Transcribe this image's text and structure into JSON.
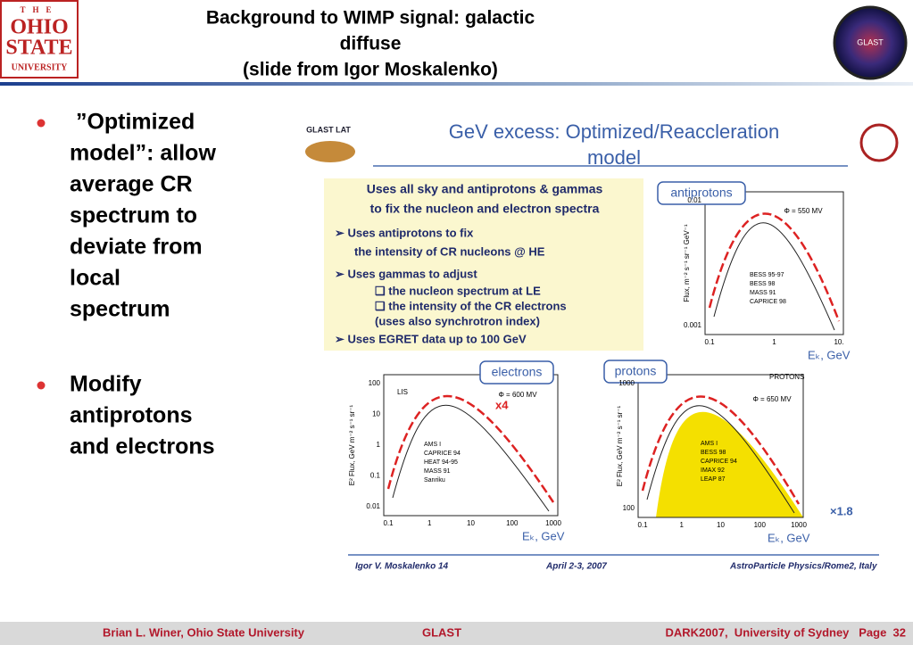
{
  "header": {
    "logo_left": [
      "THE",
      "OHIO",
      "STATE",
      "UNIVERSITY"
    ],
    "title": [
      "Background to WIMP signal: galactic",
      "diffuse",
      "(slide from Igor Moskalenko)"
    ],
    "logo_right": "GLAST"
  },
  "bullets": [
    {
      "lines": [
        " ”Optimized",
        "model”: allow",
        "average CR",
        "spectrum to",
        "deviate from",
        "local",
        "spectrum"
      ]
    },
    {
      "lines": [
        "Modify",
        "antiprotons",
        "and electrons"
      ]
    }
  ],
  "slide": {
    "logo": "GLAST LAT",
    "title": [
      "GeV excess: Optimized/Reaccleration",
      "model"
    ],
    "box": [
      "Uses all sky and antiprotons & gammas",
      "to fix the nucleon and electron spectra",
      "➢ Uses antiprotons to fix",
      "the intensity of CR nucleons @ HE",
      "➢ Uses gammas to adjust",
      "❑ the nucleon spectrum at LE",
      "❑ the intensity of the CR electrons",
      "(uses also synchrotron index)",
      "➢ Uses EGRET data up to 100 GeV"
    ],
    "plots": [
      {
        "name": "antiprotons",
        "ylabel": "Flux, m⁻² s⁻¹ sr⁻¹ GeV⁻¹",
        "xlabel": "Eₖ, GeV",
        "phi": "Φ = 550 MV",
        "yticks": [
          "0.01",
          "0.001"
        ],
        "xticks": [
          "0.1",
          "1",
          "10."
        ],
        "legend": [
          "BESS 95-97",
          "BESS 98",
          "MASS 91",
          "CAPRICE 98"
        ]
      },
      {
        "name": "electrons",
        "ylabel": "E² Flux, GeV m⁻² s⁻¹ sr⁻¹",
        "xlabel": "Eₖ, GeV",
        "phi": "Φ = 600 MV",
        "note": "x4",
        "extra": "LIS",
        "yticks": [
          "100",
          "10",
          "1",
          "0.1",
          "0.01"
        ],
        "xticks": [
          "0.1",
          "1",
          "10",
          "100",
          "1000"
        ],
        "legend": [
          "AMS I",
          "CAPRICE 94",
          "HEAT 94-95",
          "MASS 91",
          "Sanriku"
        ]
      },
      {
        "name": "protons",
        "ylabel": "E² Flux, GeV m⁻² s⁻¹ sr⁻¹",
        "xlabel": "Eₖ, GeV",
        "phi": "Φ = 650 MV",
        "note": "×1.8",
        "extra": "PROTONS",
        "yticks": [
          "1000",
          "100"
        ],
        "xticks": [
          "0.1",
          "1",
          "10",
          "100",
          "1000"
        ],
        "legend": [
          "AMS I",
          "BESS 98",
          "CAPRICE 94",
          "IMAX 92",
          "LEAP 87"
        ]
      }
    ],
    "footer": [
      "Igor V. Moskalenko 14",
      "April 2-3, 2007",
      "AstroParticle Physics/Rome2, Italy"
    ]
  },
  "footer": {
    "left": "Brian L. Winer, Ohio State University",
    "center": "GLAST",
    "right": "DARK2007,  University of Sydney   Page  32"
  }
}
